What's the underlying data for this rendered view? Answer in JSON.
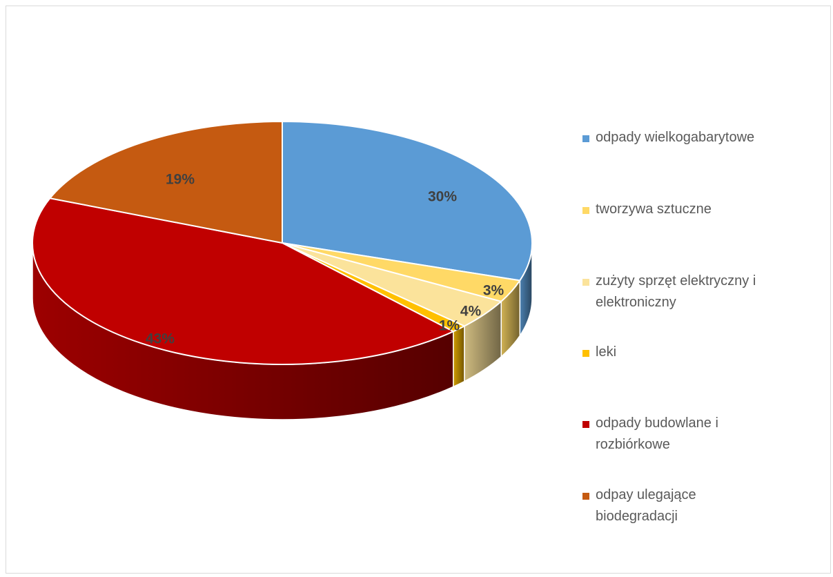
{
  "chart_data": {
    "type": "pie",
    "subtype": "3d",
    "categories": [
      "odpady wielkogabarytowe",
      "tworzywa sztuczne",
      "zużyty sprzęt elektryczny i elektroniczny",
      "leki",
      "odpady budowlane i rozbiórkowe",
      "odpay ulegające biodegradacji"
    ],
    "values": [
      30,
      3,
      4,
      1,
      43,
      19
    ],
    "value_labels": [
      "30%",
      "3%",
      "4%",
      "1%",
      "43%",
      "19%"
    ],
    "colors": [
      "#5b9bd5",
      "#ffd966",
      "#fbe39b",
      "#ffc000",
      "#c00000",
      "#c55a11"
    ],
    "legend_position": "right",
    "title": ""
  }
}
